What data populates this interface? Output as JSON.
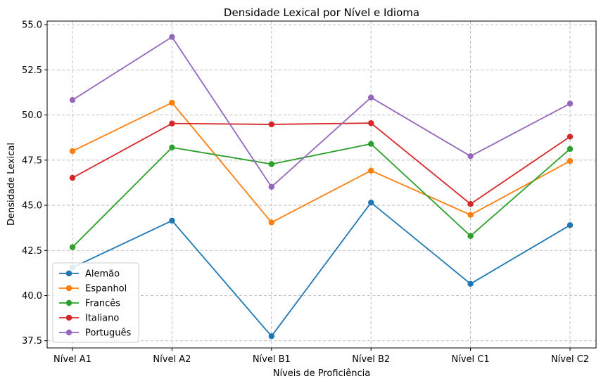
{
  "chart_data": {
    "type": "line",
    "title": "Densidade Lexical por Nível e Idioma",
    "xlabel": "Níveis de Proficiência",
    "ylabel": "Densidade Lexical",
    "categories": [
      "Nível A1",
      "Nível A2",
      "Nível B1",
      "Nível B2",
      "Nível C1",
      "Nível C2"
    ],
    "ylim": [
      37.1,
      55.2
    ],
    "yticks": [
      37.5,
      40.0,
      42.5,
      45.0,
      47.5,
      50.0,
      52.5,
      55.0
    ],
    "ytick_labels": [
      "37.5",
      "40.0",
      "42.5",
      "45.0",
      "47.5",
      "50.0",
      "52.5",
      "55.0"
    ],
    "grid": true,
    "legend_position": "lower-left",
    "series": [
      {
        "name": "Alemão",
        "color": "#1f77b4",
        "values": [
          41.55,
          44.15,
          37.75,
          45.15,
          40.65,
          43.9
        ]
      },
      {
        "name": "Espanhol",
        "color": "#ff7f0e",
        "values": [
          48.0,
          50.68,
          44.05,
          46.92,
          44.47,
          47.45
        ]
      },
      {
        "name": "Francês",
        "color": "#2ca02c",
        "values": [
          42.68,
          48.2,
          47.28,
          48.4,
          43.3,
          48.12
        ]
      },
      {
        "name": "Italiano",
        "color": "#d62728",
        "values": [
          46.52,
          49.53,
          49.48,
          49.55,
          45.07,
          48.8
        ]
      },
      {
        "name": "Português",
        "color": "#9467bd",
        "values": [
          50.83,
          54.32,
          46.02,
          50.97,
          47.72,
          50.63
        ]
      }
    ]
  }
}
